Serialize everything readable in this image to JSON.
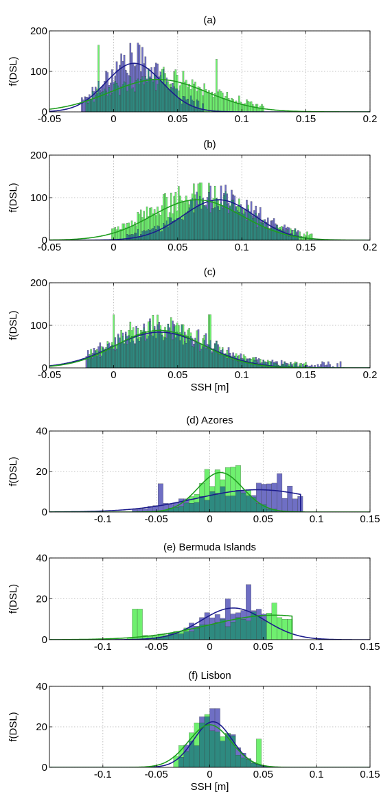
{
  "figure": {
    "colors": {
      "blue_hist": "#6f6fc4",
      "green_hist": "#6ff06f",
      "overlap_hist": "#2e8a80",
      "blue_fit": "#1c1c8c",
      "green_fit": "#1f9e1f",
      "grid": "#b0b0b0"
    }
  },
  "chart_data": [
    {
      "type": "bar",
      "title": "(a)",
      "xlabel": "",
      "ylabel": "f(DSL)",
      "xlim": [
        -0.05,
        0.2
      ],
      "ylim": [
        0,
        200
      ],
      "xticks": [
        -0.05,
        0,
        0.05,
        0.1,
        0.15,
        0.2
      ],
      "xticklabels": [
        "-0.05",
        "0",
        "0.05",
        "0.1",
        "0.15",
        "0.2"
      ],
      "yticks": [
        0,
        100,
        200
      ],
      "yticklabels": [
        "0",
        "100",
        "200"
      ],
      "grid": true,
      "series": [
        {
          "color": "blue",
          "hist_range": [
            -0.025,
            0.07
          ],
          "fit_mean": 0.016,
          "fit_sd": 0.022,
          "fit_peak": 120
        },
        {
          "color": "green",
          "hist_range": [
            -0.022,
            0.118
          ],
          "fit_mean": 0.035,
          "fit_sd": 0.038,
          "fit_peak": 80,
          "hist_spikes": [
            [
              -0.012,
              165
            ],
            [
              0.08,
              130
            ]
          ]
        }
      ]
    },
    {
      "type": "bar",
      "title": "(b)",
      "xlabel": "",
      "ylabel": "f(DSL)",
      "xlim": [
        -0.05,
        0.2
      ],
      "ylim": [
        0,
        200
      ],
      "xticks": [
        -0.05,
        0,
        0.05,
        0.1,
        0.15,
        0.2
      ],
      "xticklabels": [
        "-0.05",
        "0",
        "0.05",
        "0.1",
        "0.15",
        "0.2"
      ],
      "yticks": [
        0,
        100,
        200
      ],
      "yticklabels": [
        "0",
        "100",
        "200"
      ],
      "grid": true,
      "series": [
        {
          "color": "blue",
          "hist_range": [
            0.01,
            0.145
          ],
          "fit_mean": 0.082,
          "fit_sd": 0.028,
          "fit_peak": 95
        },
        {
          "color": "green",
          "hist_range": [
            -0.002,
            0.155
          ],
          "fit_mean": 0.065,
          "fit_sd": 0.035,
          "fit_peak": 95,
          "hist_spikes": [
            [
              0.068,
              135
            ]
          ]
        }
      ]
    },
    {
      "type": "bar",
      "title": "(c)",
      "xlabel": "SSH [m]",
      "ylabel": "f(DSL)",
      "xlim": [
        -0.05,
        0.2
      ],
      "ylim": [
        0,
        200
      ],
      "xticks": [
        -0.05,
        0,
        0.05,
        0.1,
        0.15,
        0.2
      ],
      "xticklabels": [
        "-0.05",
        "0",
        "0.05",
        "0.1",
        "0.15",
        "0.2"
      ],
      "yticks": [
        0,
        100,
        200
      ],
      "yticklabels": [
        "0",
        "100",
        "200"
      ],
      "grid": true,
      "series": [
        {
          "color": "blue",
          "hist_range": [
            -0.022,
            0.18
          ],
          "fit_mean": 0.036,
          "fit_sd": 0.036,
          "fit_peak": 84
        },
        {
          "color": "green",
          "hist_range": [
            -0.02,
            0.15
          ],
          "fit_mean": 0.036,
          "fit_sd": 0.034,
          "fit_peak": 88,
          "hist_spikes": [
            [
              0.0,
              125
            ],
            [
              0.075,
              125
            ]
          ]
        }
      ]
    },
    {
      "type": "bar",
      "title": "(d) Azores",
      "xlabel": "",
      "ylabel": "f(DSL)",
      "xlim": [
        -0.15,
        0.15
      ],
      "ylim": [
        0,
        40
      ],
      "xticks": [
        -0.1,
        -0.05,
        0,
        0.05,
        0.1,
        0.15
      ],
      "xticklabels": [
        "-0.1",
        "-0.05",
        "0",
        "0.05",
        "0.1",
        "0.15"
      ],
      "yticks": [
        0,
        20,
        40
      ],
      "yticklabels": [
        "0",
        "20",
        "40"
      ],
      "grid": true,
      "series": [
        {
          "color": "blue",
          "hist_range": [
            -0.072,
            0.085
          ],
          "fit_mean": 0.045,
          "fit_sd": 0.058,
          "fit_peak": 11,
          "fit_cut": 0.085,
          "hist_spikes": [
            [
              0.065,
              19
            ],
            [
              -0.045,
              14
            ]
          ]
        },
        {
          "color": "green",
          "hist_range": [
            -0.048,
            0.062
          ],
          "fit_mean": 0.01,
          "fit_sd": 0.021,
          "fit_peak": 19.5,
          "hist_spikes": [
            [
              0.018,
              22
            ],
            [
              0.028,
              23
            ]
          ]
        }
      ]
    },
    {
      "type": "bar",
      "title": "(e) Bermuda Islands",
      "xlabel": "",
      "ylabel": "f(DSL)",
      "xlim": [
        -0.15,
        0.15
      ],
      "ylim": [
        0,
        40
      ],
      "xticks": [
        -0.1,
        -0.05,
        0,
        0.05,
        0.1,
        0.15
      ],
      "xticklabels": [
        "-0.1",
        "-0.05",
        "0",
        "0.05",
        "0.1",
        "0.15"
      ],
      "yticks": [
        0,
        20,
        40
      ],
      "yticklabels": [
        "0",
        "20",
        "40"
      ],
      "grid": true,
      "series": [
        {
          "color": "blue",
          "hist_range": [
            -0.052,
            0.055
          ],
          "fit_mean": 0.022,
          "fit_sd": 0.03,
          "fit_peak": 15.5,
          "hist_spikes": [
            [
              0.035,
              27
            ],
            [
              0.018,
              20
            ]
          ]
        },
        {
          "color": "green",
          "hist_range": [
            -0.075,
            0.077
          ],
          "fit_mean": 0.06,
          "fit_sd": 0.06,
          "fit_peak": 12,
          "fit_cut": 0.077,
          "hist_spikes": [
            [
              -0.068,
              15
            ],
            [
              0.06,
              18
            ]
          ]
        }
      ]
    },
    {
      "type": "bar",
      "title": "(f) Lisbon",
      "xlabel": "SSH [m]",
      "ylabel": "f(DSL)",
      "xlim": [
        -0.15,
        0.15
      ],
      "ylim": [
        0,
        40
      ],
      "xticks": [
        -0.1,
        -0.05,
        0,
        0.05,
        0.1,
        0.15
      ],
      "xticklabels": [
        "-0.1",
        "-0.05",
        "0",
        "0.05",
        "0.1",
        "0.15"
      ],
      "yticks": [
        0,
        20,
        40
      ],
      "yticklabels": [
        "0",
        "20",
        "40"
      ],
      "grid": true,
      "series": [
        {
          "color": "blue",
          "hist_range": [
            -0.03,
            0.06
          ],
          "fit_mean": 0.003,
          "fit_sd": 0.018,
          "fit_peak": 22.5,
          "hist_spikes": [
            [
              0.005,
              29
            ],
            [
              -0.005,
              25
            ]
          ]
        },
        {
          "color": "green",
          "hist_range": [
            -0.035,
            0.063
          ],
          "fit_mean": 0.0,
          "fit_sd": 0.02,
          "fit_peak": 21,
          "hist_spikes": [
            [
              0.045,
              14
            ],
            [
              -0.01,
              22
            ]
          ]
        }
      ]
    }
  ]
}
